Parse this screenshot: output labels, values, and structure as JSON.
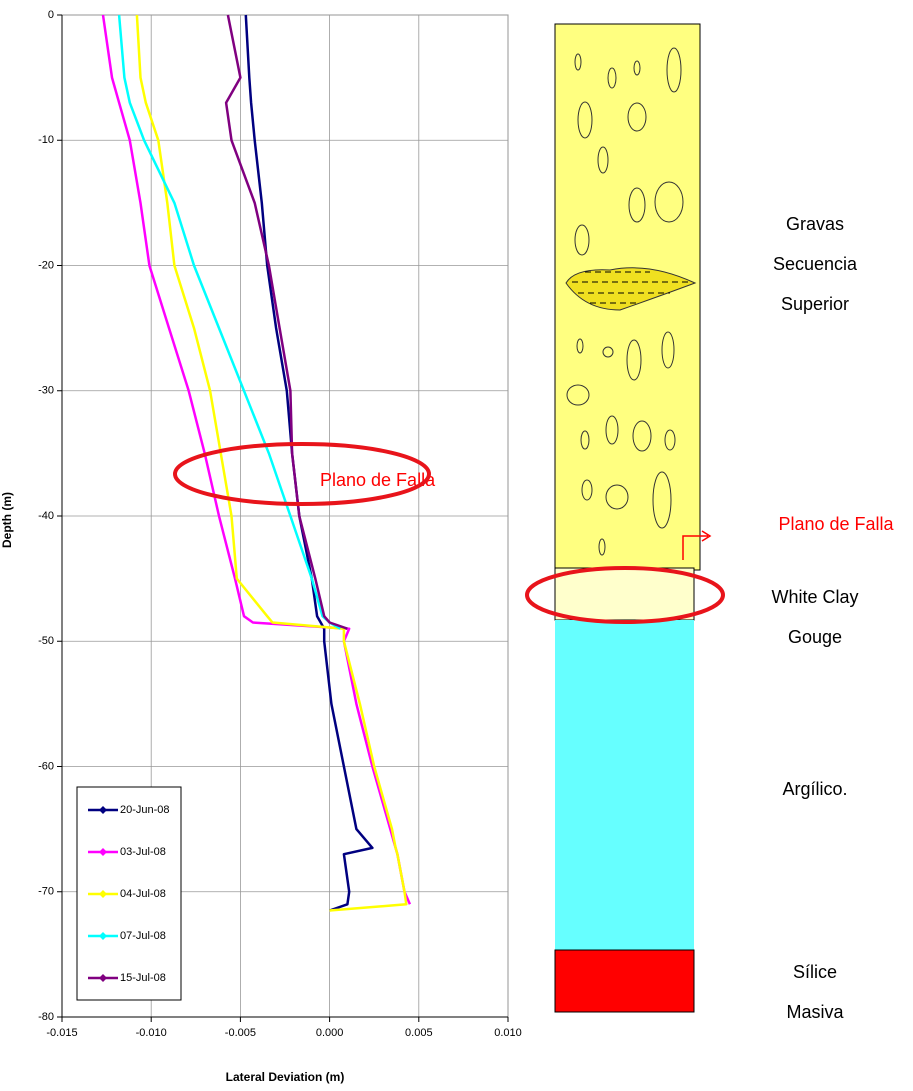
{
  "chart_data": {
    "type": "line",
    "x_label": "Lateral Deviation (m)",
    "y_label": "Depth (m)",
    "annotation": "Plano de Falla",
    "xlim": [
      -0.015,
      0.01
    ],
    "xticks": [
      -0.015,
      {
        "value": -0.01,
        "label": "-0.010"
      },
      -0.005,
      {
        "value": 0,
        "label": "0.000"
      },
      0.005,
      {
        "value": 0.01,
        "label": "0.010"
      }
    ],
    "ylim": [
      -80,
      0
    ],
    "yticks": [
      0,
      -10,
      -20,
      -30,
      -40,
      -50,
      -60,
      -70,
      -80
    ],
    "grid": true,
    "legend": "lower left",
    "y": [
      0,
      -5,
      -7,
      -10,
      -15,
      -20,
      -25,
      -30,
      -35,
      -40,
      -45,
      -48,
      -48.5,
      -49,
      -50,
      -55,
      -60,
      -65,
      -66.5,
      -67,
      -70,
      -71,
      -71.5
    ],
    "series": [
      {
        "name": "20-Jun-08",
        "color": "#000080",
        "x": [
          -0.0047,
          -0.0045,
          -0.0044,
          -0.0042,
          -0.0038,
          -0.0035,
          -0.003,
          -0.0024,
          -0.0021,
          -0.0017,
          -0.001,
          -0.0007,
          -0.0005,
          -0.0003,
          -0.0003,
          0.0001,
          0.0008,
          0.0015,
          0.0024,
          0.0008,
          0.0011,
          0.001,
          0.0
        ]
      },
      {
        "name": "03-Jul-08",
        "color": "#ff00ff",
        "x": [
          -0.0127,
          -0.0122,
          -0.0118,
          -0.0112,
          -0.0106,
          -0.0101,
          -0.009,
          -0.0079,
          -0.007,
          -0.0062,
          -0.0053,
          -0.0048,
          -0.0043,
          0.0011,
          0.0008,
          0.0015,
          0.0024,
          0.0034,
          0.0037,
          0.0038,
          0.0042,
          0.0045,
          null
        ]
      },
      {
        "name": "04-Jul-08",
        "color": "#ffff00",
        "x": [
          -0.0108,
          -0.0106,
          -0.0103,
          -0.0096,
          -0.0091,
          -0.0087,
          -0.0076,
          -0.0067,
          -0.0061,
          -0.0055,
          -0.0052,
          -0.0035,
          -0.0032,
          0.0008,
          0.0008,
          0.0017,
          0.0025,
          0.0035,
          0.0037,
          0.0038,
          0.0042,
          0.0043,
          0.0
        ]
      },
      {
        "name": "07-Jul-08",
        "color": "#00ffff",
        "x": [
          -0.0118,
          -0.0115,
          -0.0112,
          -0.0104,
          -0.0087,
          -0.0076,
          -0.0062,
          -0.0048,
          -0.0034,
          -0.0022,
          -0.001,
          -0.0004,
          0.0,
          0.0006,
          null,
          null,
          null,
          null,
          null,
          null,
          null,
          null,
          null
        ]
      },
      {
        "name": "15-Jul-08",
        "color": "#800080",
        "x": [
          -0.0057,
          -0.005,
          -0.0058,
          -0.0055,
          -0.0042,
          -0.0034,
          -0.0028,
          -0.0022,
          -0.0021,
          -0.0017,
          -0.0008,
          -0.0003,
          0.0,
          0.001,
          null,
          null,
          null,
          null,
          null,
          null,
          null,
          null,
          null
        ]
      }
    ]
  },
  "diagram": {
    "fault_label": "Plano de Falla",
    "layers": [
      {
        "lines": [
          "Gravas",
          "Secuencia",
          "Superior"
        ]
      },
      {
        "lines": [
          "White Clay",
          "Gouge"
        ]
      },
      {
        "lines": [
          "Argílico."
        ]
      },
      {
        "lines": [
          "Sílice",
          "Masiva"
        ]
      }
    ]
  }
}
